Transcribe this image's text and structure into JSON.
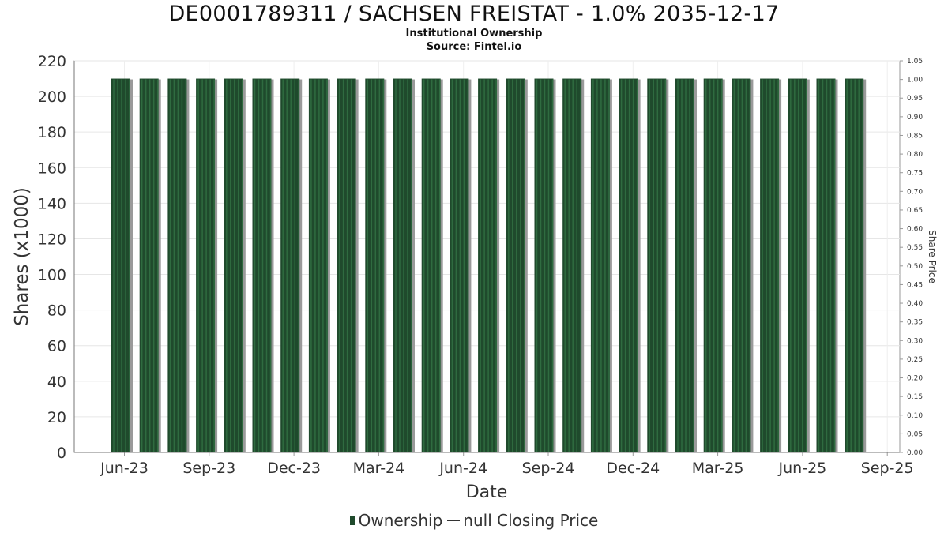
{
  "title": "DE0001789311 / SACHSEN FREISTAT - 1.0% 2035-12-17",
  "subtitle1": "Institutional Ownership",
  "subtitle2": "Source: Fintel.io",
  "legend": {
    "ownership_label": "Ownership",
    "price_label": "null Closing Price"
  },
  "colors": {
    "bar": "#1f4a2c",
    "bar_stripe": "#2f6b40",
    "bar_shadow": "#9a9a9a"
  },
  "chart_data": {
    "type": "bar",
    "xlabel": "Date",
    "ylabel": "Shares (x1000)",
    "y2label": "Share Price",
    "ylim": [
      0,
      220
    ],
    "y2lim": [
      0,
      1.05
    ],
    "grid": true,
    "legend_position": "bottom",
    "x_tick_labels": [
      "Jun-23",
      "Sep-23",
      "Dec-23",
      "Mar-24",
      "Jun-24",
      "Sep-24",
      "Dec-24",
      "Mar-25",
      "Jun-25",
      "Sep-25"
    ],
    "y_ticks": [
      0,
      20,
      40,
      60,
      80,
      100,
      120,
      140,
      160,
      180,
      200,
      220
    ],
    "y2_ticks": [
      "0.00",
      "0.05",
      "0.10",
      "0.15",
      "0.20",
      "0.25",
      "0.30",
      "0.35",
      "0.40",
      "0.45",
      "0.50",
      "0.55",
      "0.60",
      "0.65",
      "0.70",
      "0.75",
      "0.80",
      "0.85",
      "0.90",
      "0.95",
      "1.00",
      "1.05"
    ],
    "series": [
      {
        "name": "Ownership",
        "values": [
          210,
          210,
          210,
          210,
          210,
          210,
          210,
          210,
          210,
          210,
          210,
          210,
          210,
          210,
          210,
          210,
          210,
          210,
          210,
          210,
          210,
          210,
          210,
          210,
          210,
          210,
          210
        ]
      }
    ]
  }
}
